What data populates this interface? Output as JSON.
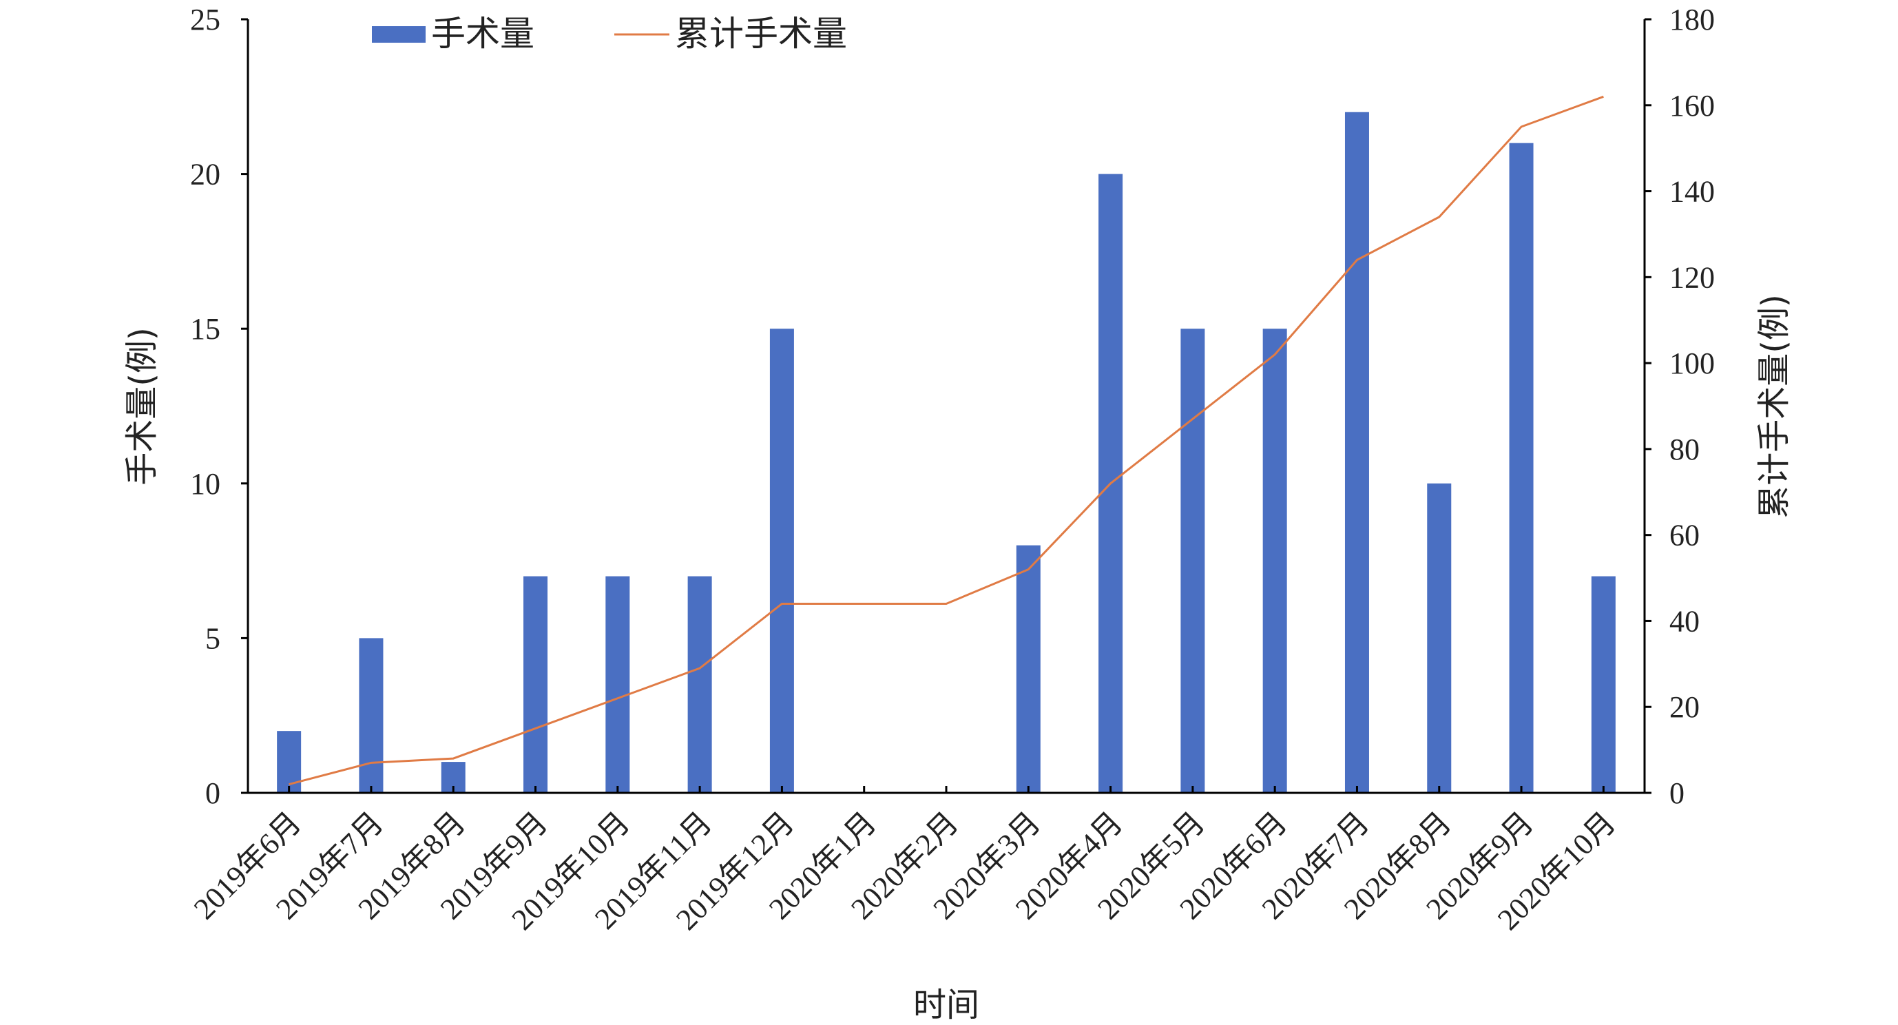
{
  "chart_data": {
    "type": "bar",
    "categories": [
      "2019年6月",
      "2019年7月",
      "2019年8月",
      "2019年9月",
      "2019年10月",
      "2019年11月",
      "2019年12月",
      "2020年1月",
      "2020年2月",
      "2020年3月",
      "2020年4月",
      "2020年5月",
      "2020年6月",
      "2020年7月",
      "2020年8月",
      "2020年9月",
      "2020年10月"
    ],
    "series": [
      {
        "name": "手术量",
        "type": "bar",
        "axis": "left",
        "color": "#4A6FC2",
        "values": [
          2,
          5,
          1,
          7,
          7,
          7,
          15,
          0,
          0,
          8,
          20,
          15,
          15,
          22,
          10,
          21,
          7
        ]
      },
      {
        "name": "累计手术量",
        "type": "line",
        "axis": "right",
        "color": "#E07B45",
        "values": [
          2,
          7,
          8,
          15,
          22,
          29,
          44,
          44,
          44,
          52,
          72,
          87,
          102,
          124,
          134,
          155,
          162
        ]
      }
    ],
    "xlabel": "时间",
    "ylabel": "手术量(例)",
    "y2label": "累计手术量(例)",
    "ylim": [
      0,
      25
    ],
    "yticks": [
      0,
      5,
      10,
      15,
      20,
      25
    ],
    "y2lim": [
      0,
      180
    ],
    "y2ticks": [
      0,
      20,
      40,
      60,
      80,
      100,
      120,
      140,
      160,
      180
    ],
    "grid": false,
    "legend": "top"
  }
}
